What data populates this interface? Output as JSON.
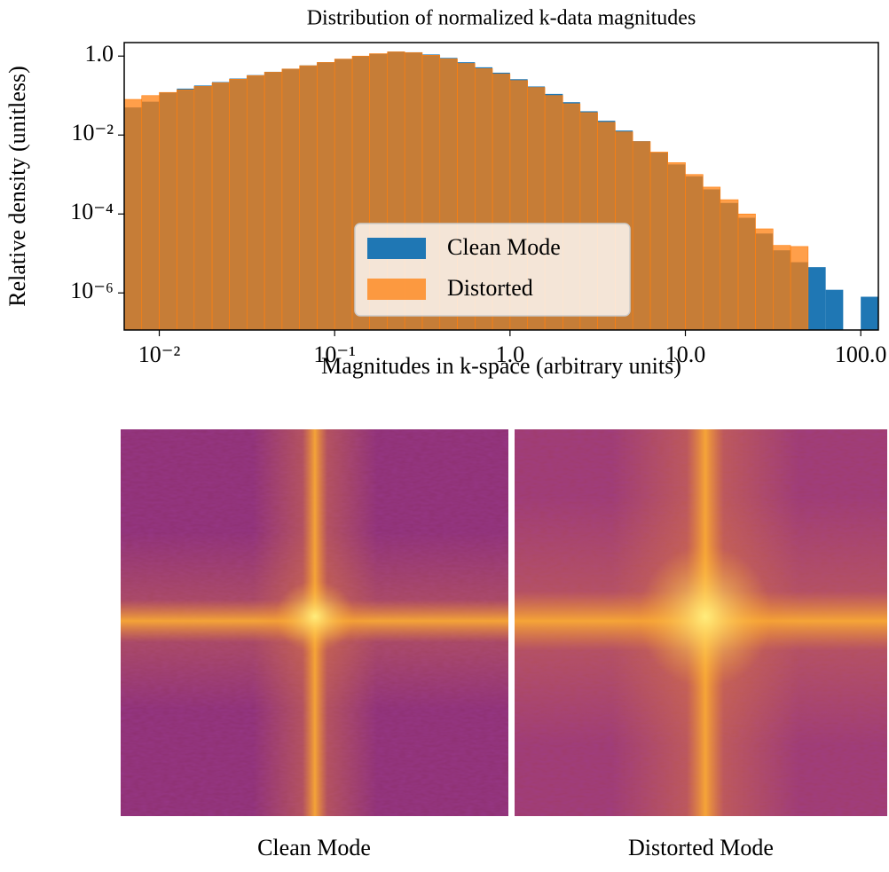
{
  "chart_data": {
    "type": "histogram",
    "title": "Distribution of normalized k-data magnitudes",
    "xlabel": "Magnitudes in k-space (arbitrary units)",
    "ylabel": "Relative density (unitless)",
    "xscale": "log",
    "yscale": "log",
    "xlim": [
      0.00631,
      126
    ],
    "ylim": [
      1.15e-07,
      2.2
    ],
    "xticks": [
      {
        "value": 0.01,
        "label": "10⁻²"
      },
      {
        "value": 0.1,
        "label": "10⁻¹"
      },
      {
        "value": 1,
        "label": "1.0"
      },
      {
        "value": 10,
        "label": "10.0"
      },
      {
        "value": 100,
        "label": "100.0"
      }
    ],
    "yticks": [
      {
        "value": 1,
        "label": "1.0"
      },
      {
        "value": 0.01,
        "label": "10⁻²"
      },
      {
        "value": 0.0001,
        "label": "10⁻⁴"
      },
      {
        "value": 1e-06,
        "label": "10⁻⁶"
      }
    ],
    "legend": "lower center",
    "alpha": 0.75,
    "bins": [
      0.00631,
      0.00794,
      0.01,
      0.0126,
      0.0158,
      0.02,
      0.0251,
      0.0316,
      0.0398,
      0.0501,
      0.0631,
      0.0794,
      0.1,
      0.126,
      0.158,
      0.2,
      0.251,
      0.316,
      0.398,
      0.501,
      0.631,
      0.794,
      1,
      1.26,
      1.58,
      2,
      2.51,
      3.16,
      3.98,
      5.01,
      6.31,
      7.94,
      10,
      12.6,
      15.8,
      20,
      25.1,
      31.6,
      39.8,
      50.1,
      63.1,
      79.4,
      100,
      126
    ],
    "series": [
      {
        "name": "Clean Mode",
        "color": "#1f77b4",
        "values": [
          0.05,
          0.07,
          0.12,
          0.15,
          0.18,
          0.22,
          0.27,
          0.33,
          0.4,
          0.48,
          0.58,
          0.7,
          0.85,
          1.0,
          1.15,
          1.3,
          1.25,
          1.1,
          0.9,
          0.7,
          0.52,
          0.38,
          0.26,
          0.17,
          0.11,
          0.068,
          0.04,
          0.023,
          0.013,
          0.007,
          0.0036,
          0.0018,
          0.0009,
          0.00042,
          0.00019,
          8e-05,
          3.2e-05,
          1.2e-05,
          6e-06,
          4.5e-06,
          1.2e-06,
          0,
          8e-07
        ]
      },
      {
        "name": "Distorted",
        "color": "#ff7f0e",
        "values": [
          0.08,
          0.1,
          0.12,
          0.14,
          0.17,
          0.21,
          0.26,
          0.32,
          0.39,
          0.47,
          0.57,
          0.69,
          0.84,
          1.0,
          1.15,
          1.28,
          1.22,
          1.05,
          0.85,
          0.65,
          0.48,
          0.35,
          0.24,
          0.16,
          0.1,
          0.062,
          0.037,
          0.021,
          0.012,
          0.0068,
          0.0037,
          0.002,
          0.001,
          0.00048,
          0.00023,
          0.0001,
          4.2e-05,
          1.6e-05,
          1.5e-05,
          0,
          0,
          0,
          0
        ]
      }
    ]
  },
  "images": [
    {
      "caption": "Clean Mode"
    },
    {
      "caption": "Distorted Mode"
    }
  ]
}
